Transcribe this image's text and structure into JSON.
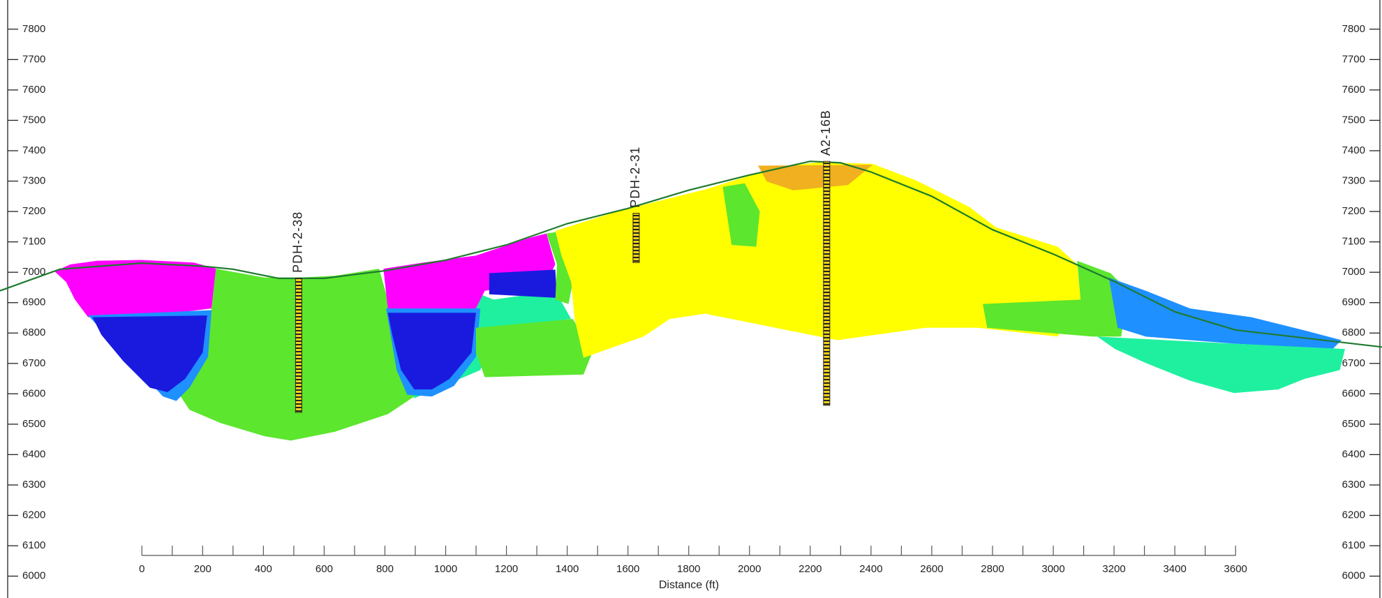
{
  "chart_data": {
    "type": "cross-section",
    "x_label": "Distance (ft)",
    "xlim": [
      -467,
      4082
    ],
    "ylim": [
      5928,
      7896
    ],
    "xticks": [
      0,
      200,
      400,
      600,
      800,
      1000,
      1200,
      1400,
      1600,
      1800,
      2000,
      2200,
      2400,
      2600,
      2800,
      3000,
      3200,
      3400,
      3600
    ],
    "yticks": [
      6000,
      6100,
      6200,
      6300,
      6400,
      6500,
      6600,
      6700,
      6800,
      6900,
      7000,
      7100,
      7200,
      7300,
      7400,
      7500,
      7600,
      7700,
      7800
    ],
    "terrain": {
      "color": "#1e7a2e",
      "x": [
        -467,
        -270,
        0,
        200,
        300,
        450,
        600,
        800,
        1000,
        1200,
        1400,
        1600,
        1800,
        2000,
        2200,
        2300,
        2400,
        2600,
        2800,
        3000,
        3200,
        3400,
        3600,
        4082
      ],
      "y": [
        6939,
        7010,
        7030,
        7020,
        7010,
        6980,
        6980,
        7005,
        7040,
        7090,
        7160,
        7210,
        7270,
        7320,
        7365,
        7360,
        7330,
        7250,
        7140,
        7060,
        6970,
        6870,
        6810,
        6754
      ]
    },
    "drillholes": [
      {
        "label": "PDH-2-38",
        "x": 516,
        "top": 6980,
        "bottom": 6539
      },
      {
        "label": "PDH-2-31",
        "x": 1627,
        "top": 7194,
        "bottom": 7032
      },
      {
        "label": "A2-16B",
        "x": 2254,
        "top": 7365,
        "bottom": 6562
      }
    ]
  }
}
